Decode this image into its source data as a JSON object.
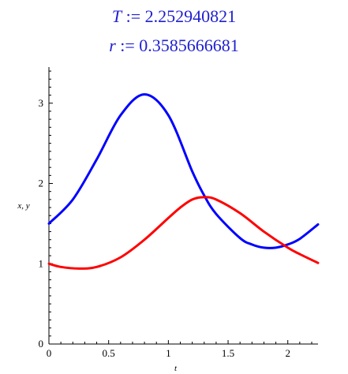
{
  "outputs": {
    "T": {
      "name": "T",
      "assign": " := ",
      "value": "2.252940821"
    },
    "r": {
      "name": "r",
      "assign": " := ",
      "value": "0.3585666681"
    }
  },
  "colors": {
    "output_text": "#2020d0",
    "series_x": "#0000ff",
    "series_y": "#ff0000"
  },
  "chart_data": {
    "type": "line",
    "xlabel": "t",
    "ylabel": "x, y",
    "xlim": [
      0,
      2.2529
    ],
    "ylim": [
      0,
      3.45
    ],
    "x_ticks": [
      "0",
      "0.5",
      "1",
      "1.5",
      "2"
    ],
    "y_ticks": [
      "0",
      "1",
      "2",
      "3"
    ],
    "grid": false,
    "legend": "none",
    "series": [
      {
        "color": "#0000ff",
        "x": [
          0,
          0.2,
          0.4,
          0.6,
          0.8,
          1.0,
          1.2,
          1.3,
          1.4,
          1.6,
          1.7,
          1.8,
          1.9,
          2.0,
          2.1,
          2.2529
        ],
        "y": [
          1.5,
          1.8,
          2.3,
          2.85,
          3.11,
          2.85,
          2.15,
          1.85,
          1.62,
          1.32,
          1.24,
          1.2,
          1.2,
          1.24,
          1.31,
          1.49
        ]
      },
      {
        "color": "#ff0000",
        "x": [
          0,
          0.1,
          0.25,
          0.4,
          0.6,
          0.8,
          1.0,
          1.1,
          1.2,
          1.3,
          1.4,
          1.6,
          1.8,
          2.0,
          2.1,
          2.2529
        ],
        "y": [
          1.0,
          0.96,
          0.94,
          0.96,
          1.08,
          1.3,
          1.57,
          1.7,
          1.8,
          1.83,
          1.8,
          1.63,
          1.4,
          1.2,
          1.12,
          1.01
        ]
      }
    ]
  }
}
